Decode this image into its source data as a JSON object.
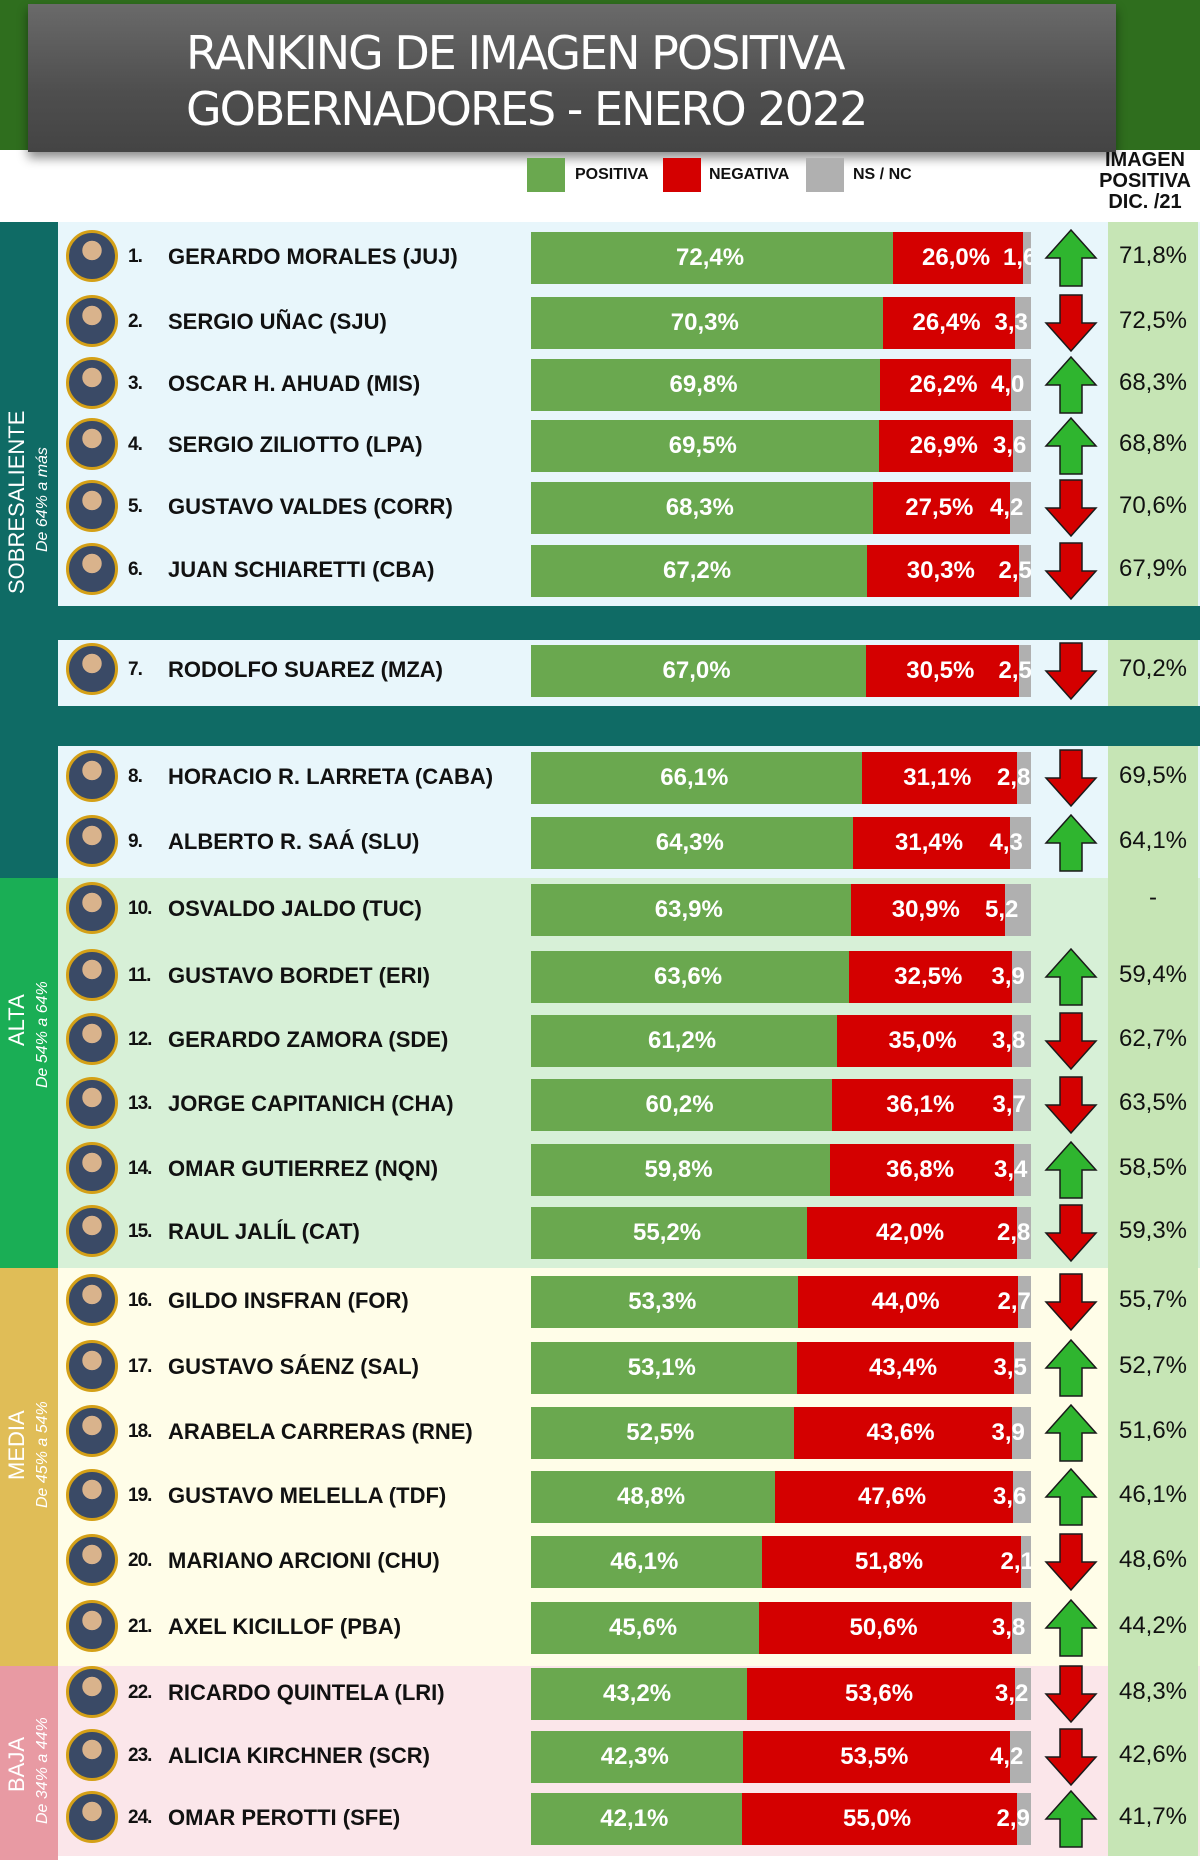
{
  "header": {
    "title_line1": "RANKING DE IMAGEN POSITIVA",
    "title_line2": "GOBERNADORES - ENERO 2022"
  },
  "legend": {
    "positive": "POSITIVA",
    "negative": "NEGATIVA",
    "ns": "NS / NC"
  },
  "prev_header": [
    "IMAGEN",
    "POSITIVA",
    "DIC. /21"
  ],
  "colors": {
    "positive": "#6aa84f",
    "negative": "#d40000",
    "ns": "#b0b0b0",
    "up": "#2fb52f",
    "down": "#d40000"
  },
  "sections": [
    {
      "name": "SOBRESALIENTE",
      "range": "De 64% a más"
    },
    {
      "name": "ALTA",
      "range": "De 54% a 64%"
    },
    {
      "name": "MEDIA",
      "range": "De 45% a 54%"
    },
    {
      "name": "BAJA",
      "range": "De 34% a 44%"
    }
  ],
  "chart_data": {
    "type": "bar",
    "stacked": true,
    "orientation": "horizontal",
    "series_names": [
      "POSITIVA",
      "NEGATIVA",
      "NS / NC"
    ],
    "rows": [
      {
        "rank": "1.",
        "name": "GERARDO MORALES (JUJ)",
        "positive": 72.4,
        "negative": 26.0,
        "ns": 1.6,
        "pos_label": "72,4%",
        "neg_label": "26,0%",
        "ns_label": "1,6",
        "trend": "up",
        "prev": "71,8%"
      },
      {
        "rank": "2.",
        "name": "SERGIO UÑAC (SJU)",
        "positive": 70.3,
        "negative": 26.4,
        "ns": 3.3,
        "pos_label": "70,3%",
        "neg_label": "26,4%",
        "ns_label": "3,3",
        "trend": "down",
        "prev": "72,5%"
      },
      {
        "rank": "3.",
        "name": "OSCAR H. AHUAD (MIS)",
        "positive": 69.8,
        "negative": 26.2,
        "ns": 4.0,
        "pos_label": "69,8%",
        "neg_label": "26,2%",
        "ns_label": "4,0",
        "trend": "up",
        "prev": "68,3%"
      },
      {
        "rank": "4.",
        "name": "SERGIO ZILIOTTO (LPA)",
        "positive": 69.5,
        "negative": 26.9,
        "ns": 3.6,
        "pos_label": "69,5%",
        "neg_label": "26,9%",
        "ns_label": "3,6",
        "trend": "up",
        "prev": "68,8%"
      },
      {
        "rank": "5.",
        "name": "GUSTAVO VALDES (CORR)",
        "positive": 68.3,
        "negative": 27.5,
        "ns": 4.2,
        "pos_label": "68,3%",
        "neg_label": "27,5%",
        "ns_label": "4,2",
        "trend": "down",
        "prev": "70,6%"
      },
      {
        "rank": "6.",
        "name": "JUAN SCHIARETTI (CBA)",
        "positive": 67.2,
        "negative": 30.3,
        "ns": 2.5,
        "pos_label": "67,2%",
        "neg_label": "30,3%",
        "ns_label": "2,5",
        "trend": "down",
        "prev": "67,9%"
      },
      {
        "rank": "7.",
        "name": "RODOLFO SUAREZ (MZA)",
        "positive": 67.0,
        "negative": 30.5,
        "ns": 2.5,
        "pos_label": "67,0%",
        "neg_label": "30,5%",
        "ns_label": "2,5",
        "trend": "down",
        "prev": "70,2%"
      },
      {
        "rank": "8.",
        "name": "HORACIO R. LARRETA (CABA)",
        "positive": 66.1,
        "negative": 31.1,
        "ns": 2.8,
        "pos_label": "66,1%",
        "neg_label": "31,1%",
        "ns_label": "2,8",
        "trend": "down",
        "prev": "69,5%"
      },
      {
        "rank": "9.",
        "name": "ALBERTO R. SAÁ (SLU)",
        "positive": 64.3,
        "negative": 31.4,
        "ns": 4.3,
        "pos_label": "64,3%",
        "neg_label": "31,4%",
        "ns_label": "4,3",
        "trend": "up",
        "prev": "64,1%"
      },
      {
        "rank": "10.",
        "name": "OSVALDO JALDO (TUC)",
        "positive": 63.9,
        "negative": 30.9,
        "ns": 5.2,
        "pos_label": "63,9%",
        "neg_label": "30,9%",
        "ns_label": "5,2",
        "trend": "none",
        "prev": "-"
      },
      {
        "rank": "11.",
        "name": "GUSTAVO BORDET (ERI)",
        "positive": 63.6,
        "negative": 32.5,
        "ns": 3.9,
        "pos_label": "63,6%",
        "neg_label": "32,5%",
        "ns_label": "3,9",
        "trend": "up",
        "prev": "59,4%"
      },
      {
        "rank": "12.",
        "name": "GERARDO ZAMORA (SDE)",
        "positive": 61.2,
        "negative": 35.0,
        "ns": 3.8,
        "pos_label": "61,2%",
        "neg_label": "35,0%",
        "ns_label": "3,8",
        "trend": "down",
        "prev": "62,7%"
      },
      {
        "rank": "13.",
        "name": "JORGE CAPITANICH (CHA)",
        "positive": 60.2,
        "negative": 36.1,
        "ns": 3.7,
        "pos_label": "60,2%",
        "neg_label": "36,1%",
        "ns_label": "3,7",
        "trend": "down",
        "prev": "63,5%"
      },
      {
        "rank": "14.",
        "name": "OMAR GUTIERREZ (NQN)",
        "positive": 59.8,
        "negative": 36.8,
        "ns": 3.4,
        "pos_label": "59,8%",
        "neg_label": "36,8%",
        "ns_label": "3,4",
        "trend": "up",
        "prev": "58,5%"
      },
      {
        "rank": "15.",
        "name": "RAUL JALÍL (CAT)",
        "positive": 55.2,
        "negative": 42.0,
        "ns": 2.8,
        "pos_label": "55,2%",
        "neg_label": "42,0%",
        "ns_label": "2,8",
        "trend": "down",
        "prev": "59,3%"
      },
      {
        "rank": "16.",
        "name": "GILDO INSFRAN (FOR)",
        "positive": 53.3,
        "negative": 44.0,
        "ns": 2.7,
        "pos_label": "53,3%",
        "neg_label": "44,0%",
        "ns_label": "2,7",
        "trend": "down",
        "prev": "55,7%"
      },
      {
        "rank": "17.",
        "name": "GUSTAVO SÁENZ (SAL)",
        "positive": 53.1,
        "negative": 43.4,
        "ns": 3.5,
        "pos_label": "53,1%",
        "neg_label": "43,4%",
        "ns_label": "3,5",
        "trend": "up",
        "prev": "52,7%"
      },
      {
        "rank": "18.",
        "name": "ARABELA CARRERAS (RNE)",
        "positive": 52.5,
        "negative": 43.6,
        "ns": 3.9,
        "pos_label": "52,5%",
        "neg_label": "43,6%",
        "ns_label": "3,9",
        "trend": "up",
        "prev": "51,6%"
      },
      {
        "rank": "19.",
        "name": "GUSTAVO MELELLA (TDF)",
        "positive": 48.8,
        "negative": 47.6,
        "ns": 3.6,
        "pos_label": "48,8%",
        "neg_label": "47,6%",
        "ns_label": "3,6",
        "trend": "up",
        "prev": "46,1%"
      },
      {
        "rank": "20.",
        "name": "MARIANO ARCIONI (CHU)",
        "positive": 46.1,
        "negative": 51.8,
        "ns": 2.1,
        "pos_label": "46,1%",
        "neg_label": "51,8%",
        "ns_label": "2,1",
        "trend": "down",
        "prev": "48,6%"
      },
      {
        "rank": "21.",
        "name": "AXEL KICILLOF (PBA)",
        "positive": 45.6,
        "negative": 50.6,
        "ns": 3.8,
        "pos_label": "45,6%",
        "neg_label": "50,6%",
        "ns_label": "3,8",
        "trend": "up",
        "prev": "44,2%"
      },
      {
        "rank": "22.",
        "name": "RICARDO QUINTELA (LRI)",
        "positive": 43.2,
        "negative": 53.6,
        "ns": 3.2,
        "pos_label": "43,2%",
        "neg_label": "53,6%",
        "ns_label": "3,2",
        "trend": "down",
        "prev": "48,3%"
      },
      {
        "rank": "23.",
        "name": "ALICIA KIRCHNER (SCR)",
        "positive": 42.3,
        "negative": 53.5,
        "ns": 4.2,
        "pos_label": "42,3%",
        "neg_label": "53,5%",
        "ns_label": "4,2",
        "trend": "down",
        "prev": "42,6%"
      },
      {
        "rank": "24.",
        "name": "OMAR PEROTTI (SFE)",
        "positive": 42.1,
        "negative": 55.0,
        "ns": 2.9,
        "pos_label": "42,1%",
        "neg_label": "55,0%",
        "ns_label": "2,9",
        "trend": "up",
        "prev": "41,7%"
      }
    ]
  }
}
